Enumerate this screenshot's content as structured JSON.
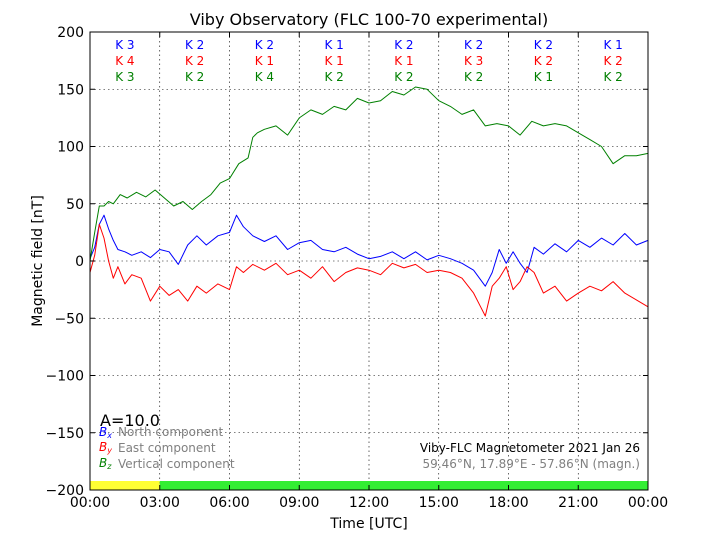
{
  "colors": {
    "north": "#0000ff",
    "east": "#ff0000",
    "vertical": "#008000",
    "info_gray": "#808080",
    "bar_yellow": "#ffff33",
    "bar_green": "#33ee33"
  },
  "chart_data": {
    "type": "line",
    "title": "Viby Observatory (FLC 100-70 experimental)",
    "xlabel": "Time [UTC]",
    "ylabel": "Magnetic field [nT]",
    "xlim": [
      0,
      24
    ],
    "ylim": [
      -200,
      200
    ],
    "x_ticks": [
      0,
      3,
      6,
      9,
      12,
      15,
      18,
      21,
      24
    ],
    "x_tick_labels": [
      "00:00",
      "03:00",
      "06:00",
      "09:00",
      "12:00",
      "15:00",
      "18:00",
      "21:00",
      "00:00"
    ],
    "y_ticks": [
      200,
      150,
      100,
      50,
      0,
      -50,
      -100,
      -150,
      -200
    ],
    "y_tick_labels": [
      "200",
      "150",
      "100",
      "50",
      "0",
      "−50",
      "−100",
      "−150",
      "−200"
    ],
    "grid": true,
    "legend": "bottom-left",
    "a_index_label": "A=10.0",
    "info_line1": "Viby-FLC Magnetometer 2021 Jan 26",
    "info_line2": "59.46°N, 17.89°E - 57.86°N (magn.)",
    "k_indices": {
      "north": [
        "K 3",
        "K 2",
        "K 2",
        "K 1",
        "K 2",
        "K 2",
        "K 2",
        "K 1"
      ],
      "east": [
        "K 4",
        "K 2",
        "K 1",
        "K 1",
        "K 1",
        "K 3",
        "K 2",
        "K 2"
      ],
      "vertical": [
        "K 3",
        "K 2",
        "K 4",
        "K 2",
        "K 2",
        "K 2",
        "K 1",
        "K 2"
      ]
    },
    "activity_bar": [
      {
        "from": 0,
        "to": 3,
        "level": "yellow"
      },
      {
        "from": 3,
        "to": 24,
        "level": "green"
      }
    ],
    "series": [
      {
        "key": "north",
        "symbol": "Bx",
        "name": "North component",
        "x": [
          0,
          0.2,
          0.4,
          0.6,
          0.8,
          1.0,
          1.2,
          1.5,
          1.8,
          2.2,
          2.6,
          3.0,
          3.4,
          3.8,
          4.2,
          4.6,
          5.0,
          5.5,
          6.0,
          6.3,
          6.6,
          7.0,
          7.5,
          8.0,
          8.5,
          9.0,
          9.5,
          10.0,
          10.5,
          11.0,
          11.5,
          12.0,
          12.5,
          13.0,
          13.5,
          14.0,
          14.5,
          15.0,
          15.5,
          16.0,
          16.5,
          17.0,
          17.3,
          17.6,
          17.9,
          18.2,
          18.5,
          18.8,
          19.1,
          19.5,
          20.0,
          20.5,
          21.0,
          21.5,
          22.0,
          22.5,
          23.0,
          23.5,
          24.0
        ],
        "y": [
          2,
          12,
          32,
          40,
          28,
          18,
          10,
          8,
          5,
          8,
          3,
          10,
          8,
          -3,
          14,
          22,
          14,
          22,
          25,
          40,
          30,
          22,
          17,
          22,
          10,
          16,
          18,
          10,
          8,
          12,
          6,
          2,
          4,
          8,
          2,
          8,
          1,
          5,
          2,
          -2,
          -8,
          -22,
          -10,
          10,
          -2,
          8,
          -2,
          -10,
          12,
          6,
          15,
          8,
          18,
          12,
          20,
          14,
          24,
          14,
          18
        ]
      },
      {
        "key": "east",
        "symbol": "By",
        "name": "East component",
        "x": [
          0,
          0.2,
          0.4,
          0.6,
          0.8,
          1.0,
          1.2,
          1.5,
          1.8,
          2.2,
          2.6,
          3.0,
          3.4,
          3.8,
          4.2,
          4.6,
          5.0,
          5.5,
          6.0,
          6.3,
          6.6,
          7.0,
          7.5,
          8.0,
          8.5,
          9.0,
          9.5,
          10.0,
          10.5,
          11.0,
          11.5,
          12.0,
          12.5,
          13.0,
          13.5,
          14.0,
          14.5,
          15.0,
          15.5,
          16.0,
          16.5,
          16.8,
          17.0,
          17.3,
          17.6,
          17.9,
          18.2,
          18.5,
          18.8,
          19.1,
          19.5,
          20.0,
          20.5,
          21.0,
          21.5,
          22.0,
          22.5,
          23.0,
          23.5,
          24.0
        ],
        "y": [
          -10,
          5,
          32,
          20,
          0,
          -15,
          -5,
          -20,
          -12,
          -15,
          -35,
          -22,
          -30,
          -25,
          -35,
          -22,
          -28,
          -20,
          -25,
          -5,
          -10,
          -3,
          -8,
          -2,
          -12,
          -8,
          -15,
          -5,
          -18,
          -10,
          -6,
          -8,
          -12,
          -2,
          -6,
          -3,
          -10,
          -8,
          -10,
          -15,
          -28,
          -40,
          -48,
          -22,
          -15,
          -5,
          -25,
          -18,
          -5,
          -10,
          -28,
          -22,
          -35,
          -28,
          -22,
          -26,
          -18,
          -28,
          -34,
          -40
        ]
      },
      {
        "key": "vertical",
        "symbol": "Bz",
        "name": "Vertical component",
        "x": [
          0,
          0.2,
          0.4,
          0.6,
          0.8,
          1.0,
          1.3,
          1.6,
          2.0,
          2.4,
          2.8,
          3.2,
          3.6,
          4.0,
          4.4,
          4.8,
          5.2,
          5.6,
          6.0,
          6.4,
          6.8,
          7.0,
          7.2,
          7.5,
          8.0,
          8.5,
          9.0,
          9.5,
          10.0,
          10.5,
          11.0,
          11.5,
          12.0,
          12.5,
          13.0,
          13.5,
          14.0,
          14.5,
          15.0,
          15.5,
          16.0,
          16.5,
          17.0,
          17.5,
          18.0,
          18.5,
          19.0,
          19.5,
          20.0,
          20.5,
          21.0,
          21.5,
          22.0,
          22.5,
          23.0,
          23.5,
          24.0
        ],
        "y": [
          0,
          25,
          48,
          48,
          52,
          50,
          58,
          55,
          60,
          56,
          62,
          55,
          48,
          52,
          45,
          52,
          58,
          68,
          72,
          85,
          90,
          108,
          112,
          115,
          118,
          110,
          125,
          132,
          128,
          135,
          132,
          142,
          138,
          140,
          148,
          145,
          152,
          150,
          140,
          135,
          128,
          132,
          118,
          120,
          118,
          110,
          122,
          118,
          120,
          118,
          112,
          106,
          100,
          85,
          92,
          92,
          94
        ]
      }
    ]
  }
}
